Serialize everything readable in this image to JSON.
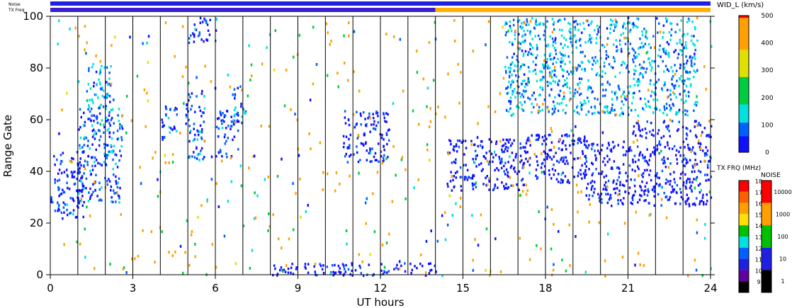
{
  "chart_data": {
    "type": "heatmap",
    "xlabel": "UT hours",
    "ylabel": "Range Gate",
    "xlim": [
      0,
      24
    ],
    "ylim": [
      0,
      100
    ],
    "x_ticks": [
      0,
      3,
      6,
      9,
      12,
      15,
      18,
      21,
      24
    ],
    "y_ticks": [
      0,
      20,
      40,
      60,
      80,
      100
    ],
    "grid": "vertical lines every 1 UT hour",
    "top_bars": [
      {
        "label": "Noise",
        "segments": [
          {
            "from": 0,
            "to": 24,
            "color": "#2020e0"
          }
        ]
      },
      {
        "label": "TX Freq",
        "segments": [
          {
            "from": 0,
            "to": 14,
            "color": "#3a1fd0"
          },
          {
            "from": 14,
            "to": 24,
            "color": "#ffb000"
          }
        ]
      }
    ],
    "colorbars": [
      {
        "title": "WID_L (km/s)",
        "ticks": [
          "500",
          "400",
          "300",
          "200",
          "100",
          "0"
        ],
        "range": [
          0,
          500
        ]
      },
      {
        "title": "TX FRQ (MHz)",
        "ticks": [
          "18",
          "17",
          "16",
          "15",
          "14",
          "13",
          "12",
          "11",
          "10",
          "9"
        ]
      },
      {
        "title": "NOISE",
        "ticks": [
          "10000",
          "1000",
          "100",
          "10",
          "1"
        ]
      }
    ],
    "echo_regions": [
      {
        "ut_start": 0.0,
        "ut_end": 1.2,
        "gate_low": 22,
        "gate_high": 48,
        "wid": 40
      },
      {
        "ut_start": 1.0,
        "ut_end": 2.6,
        "gate_low": 28,
        "gate_high": 66,
        "wid": 70
      },
      {
        "ut_start": 1.3,
        "ut_end": 2.2,
        "gate_low": 60,
        "gate_high": 82,
        "wid": 110
      },
      {
        "ut_start": 4.0,
        "ut_end": 4.6,
        "gate_low": 52,
        "gate_high": 66,
        "wid": 60
      },
      {
        "ut_start": 4.9,
        "ut_end": 5.6,
        "gate_low": 45,
        "gate_high": 72,
        "wid": 60
      },
      {
        "ut_start": 6.0,
        "ut_end": 6.8,
        "gate_low": 46,
        "gate_high": 64,
        "wid": 60
      },
      {
        "ut_start": 6.6,
        "ut_end": 7.1,
        "gate_low": 58,
        "gate_high": 74,
        "wid": 80
      },
      {
        "ut_start": 10.6,
        "ut_end": 12.3,
        "gate_low": 44,
        "gate_high": 64,
        "wid": 40
      },
      {
        "ut_start": 14.4,
        "ut_end": 17.2,
        "gate_low": 33,
        "gate_high": 53,
        "wid": 20
      },
      {
        "ut_start": 17.0,
        "ut_end": 19.5,
        "gate_low": 36,
        "gate_high": 55,
        "wid": 20
      },
      {
        "ut_start": 19.4,
        "ut_end": 21.0,
        "gate_low": 27,
        "gate_high": 52,
        "wid": 20
      },
      {
        "ut_start": 21.0,
        "ut_end": 24.0,
        "gate_low": 27,
        "gate_high": 60,
        "wid": 20
      },
      {
        "ut_start": 16.5,
        "ut_end": 23.5,
        "gate_low": 62,
        "gate_high": 100,
        "wid": 110
      },
      {
        "ut_start": 5.0,
        "ut_end": 6.0,
        "gate_low": 90,
        "gate_high": 100,
        "wid": 60
      },
      {
        "ut_start": 8.0,
        "ut_end": 14.0,
        "gate_low": 0,
        "gate_high": 5,
        "wid": 20
      }
    ]
  }
}
